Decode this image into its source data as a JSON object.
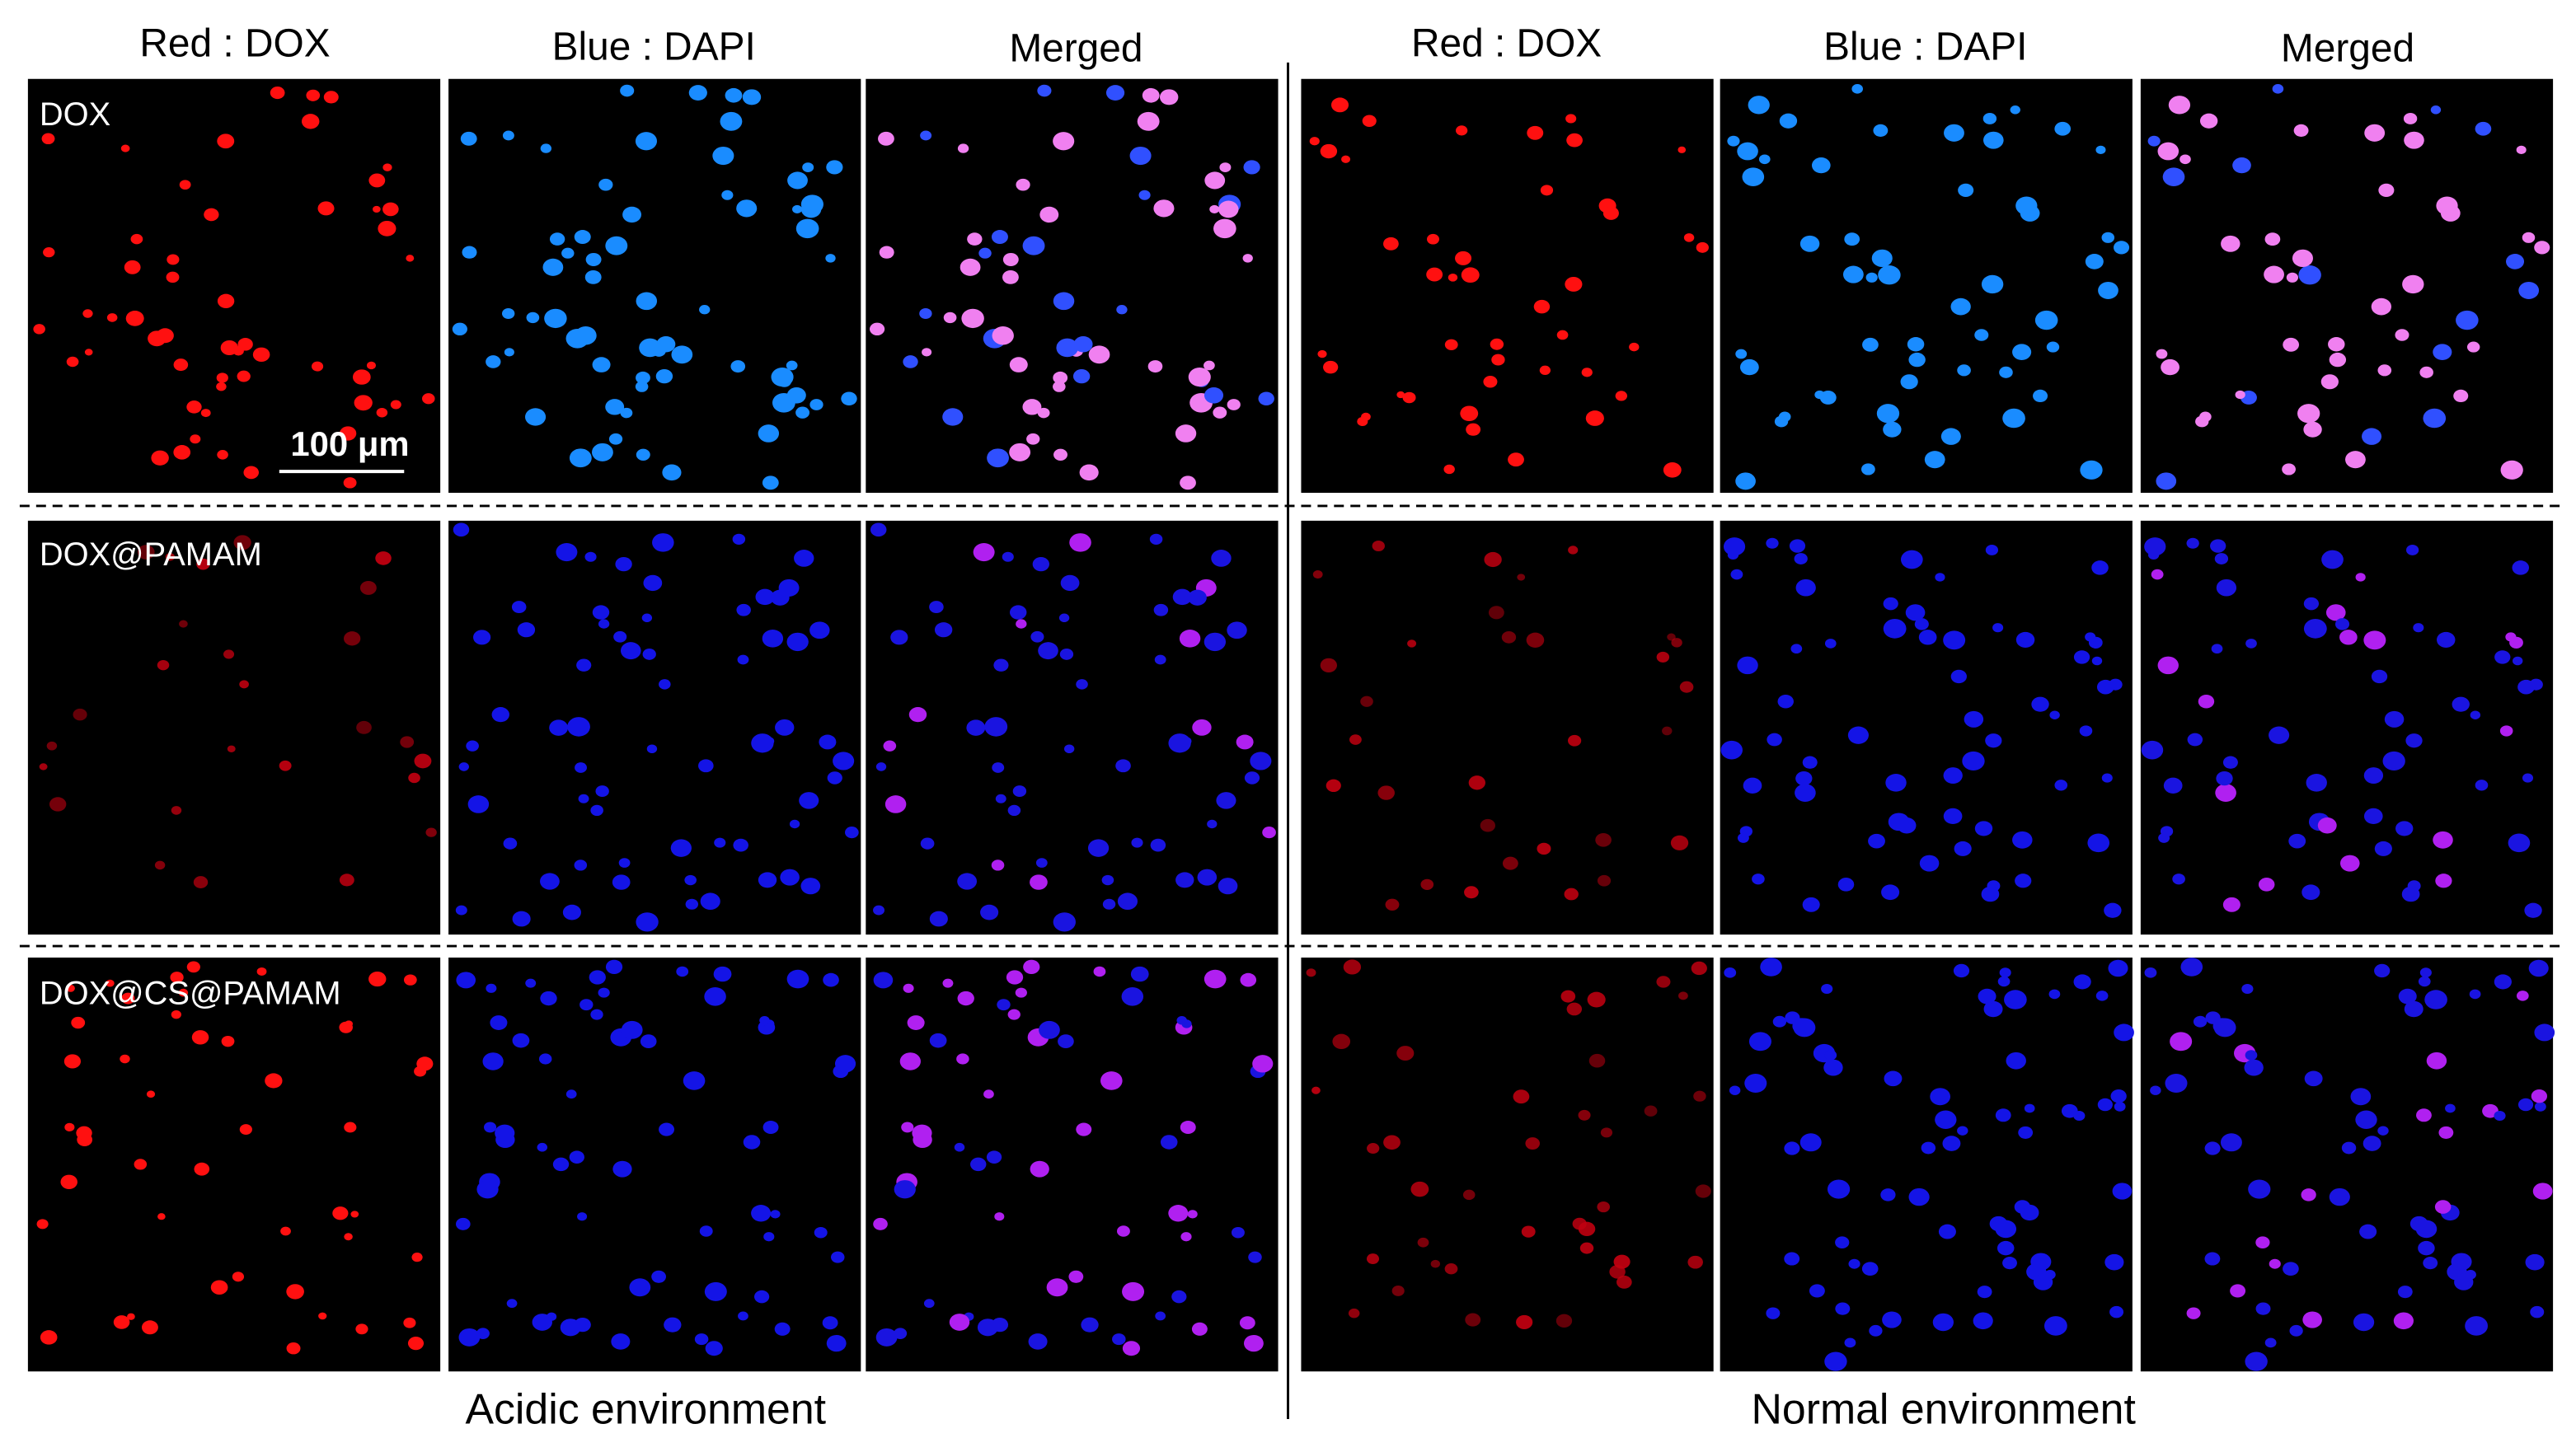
{
  "columns": {
    "left": [
      "Red  : DOX",
      "Blue  : DAPI",
      "Merged"
    ],
    "right": [
      "Red  : DOX",
      "Blue  : DAPI",
      "Merged"
    ]
  },
  "rows": [
    "DOX",
    "DOX@PAMAM",
    "DOX@CS@PAMAM"
  ],
  "scale_bar": "100 μm",
  "groups": [
    "Acidic environment",
    "Normal environment"
  ]
}
